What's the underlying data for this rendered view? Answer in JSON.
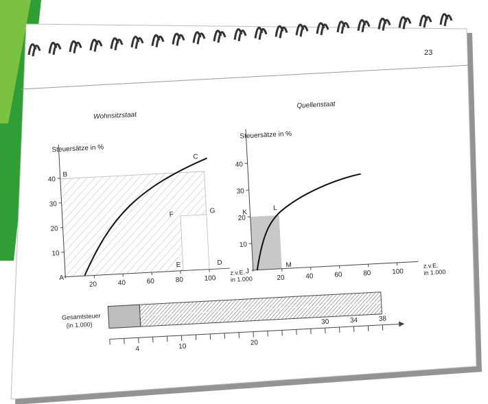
{
  "page": {
    "number": "23"
  },
  "left_chart": {
    "title": "Wohnsitzstaat",
    "ylabel": "Steuersätze in %",
    "xlabel_line1": "z.v.E.",
    "xlabel_line2": "in 1.000",
    "y_ticks": [
      "10",
      "20",
      "30",
      "40"
    ],
    "x_ticks": [
      "20",
      "40",
      "60",
      "80",
      "100"
    ],
    "points": {
      "A": "A",
      "B": "B",
      "C": "C",
      "D": "D",
      "E": "E",
      "F": "F",
      "G": "G"
    }
  },
  "right_chart": {
    "title": "Quellenstaat",
    "ylabel": "Steuersätze in %",
    "xlabel_line1": "z.v.E.",
    "xlabel_line2": "in 1.000",
    "y_ticks": [
      "10",
      "20",
      "30",
      "40"
    ],
    "x_ticks": [
      "20",
      "40",
      "60",
      "80",
      "100"
    ],
    "points": {
      "J": "J",
      "K": "K",
      "L": "L",
      "M": "M"
    }
  },
  "total_tax": {
    "label_line1": "Gesamtsteuer",
    "label_line2": "(in 1.000)",
    "scale_labels": [
      "4",
      "10",
      "20",
      "30",
      "34",
      "38"
    ]
  },
  "colors": {
    "green_accent": "#3fae3a",
    "shaded_area": "#c8c8c8",
    "frame": "#555555"
  }
}
